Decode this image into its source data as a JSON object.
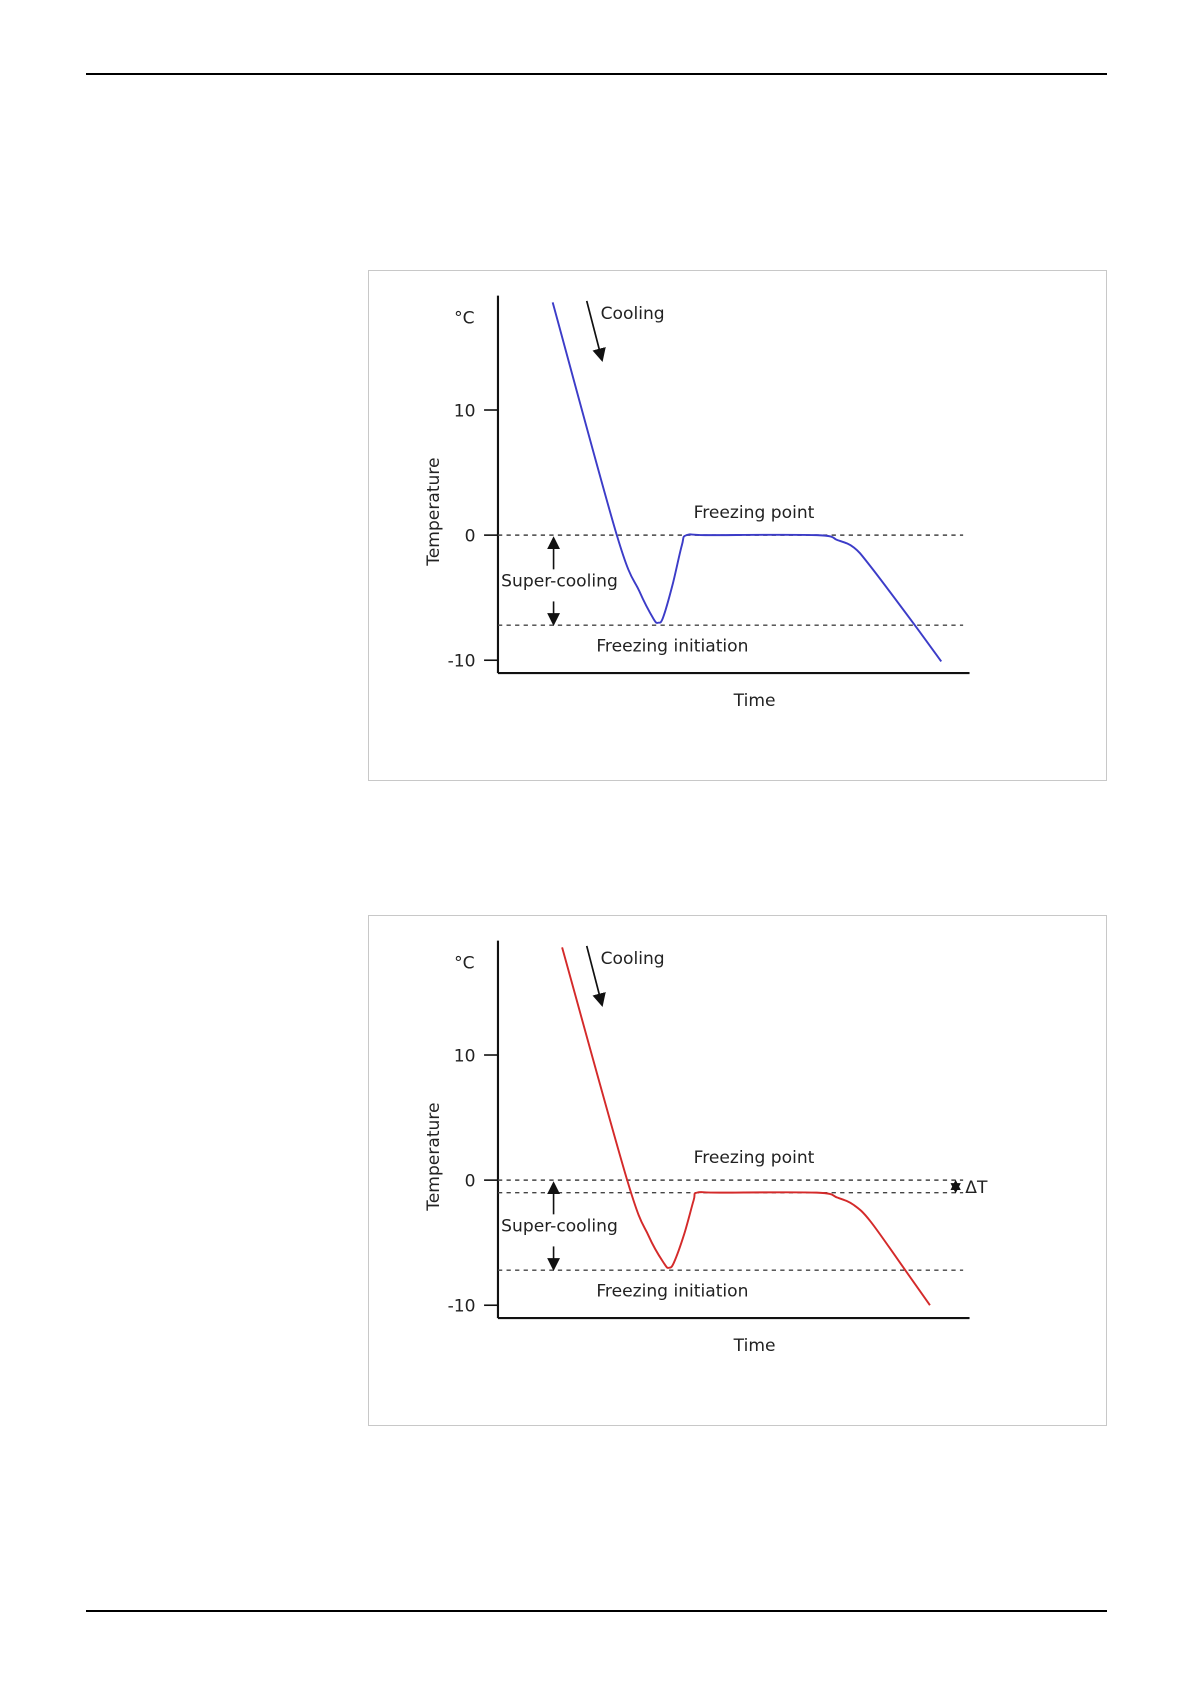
{
  "chart_data": [
    {
      "type": "line",
      "title": "",
      "unit_label": "°C",
      "ylabel": "Temperature",
      "xlabel": "Time",
      "ylim": [
        -11,
        19
      ],
      "xlim": [
        0,
        100
      ],
      "yticks": [
        "10",
        "0",
        "-10"
      ],
      "ytick_values": [
        10,
        0,
        -10
      ],
      "series": [
        {
          "name": "temperature",
          "color": "#3c3cc8",
          "x": [
            11.6,
            25.2,
            30,
            33,
            34,
            35,
            37,
            39,
            40,
            45,
            67.6,
            72,
            75.5,
            79,
            88,
            94
          ],
          "y": [
            18.6,
            0,
            -4.5,
            -6.7,
            -7,
            -6.6,
            -4,
            -0.8,
            0,
            0,
            0,
            -0.4,
            -1,
            -2.5,
            -7,
            -10.1
          ]
        }
      ],
      "reference_lines": [
        {
          "label": "Freezing point",
          "value": 0
        },
        {
          "label": "Freezing initiation",
          "value": -7.2
        }
      ],
      "annotations": {
        "cooling": "Cooling",
        "supercooling": "Super-cooling"
      },
      "delta_t": null
    },
    {
      "type": "line",
      "title": "",
      "unit_label": "°C",
      "ylabel": "Temperature",
      "xlabel": "Time",
      "ylim": [
        -11,
        19
      ],
      "xlim": [
        0,
        100
      ],
      "yticks": [
        "10",
        "0",
        "-10"
      ],
      "ytick_values": [
        10,
        0,
        -10
      ],
      "series": [
        {
          "name": "temperature",
          "color": "#d42a2a",
          "x": [
            13.6,
            27.4,
            32,
            35.3,
            36.3,
            37.3,
            39.5,
            41.5,
            42.2,
            47,
            67.6,
            72,
            75.5,
            79,
            86,
            91.6
          ],
          "y": [
            18.6,
            0,
            -4.5,
            -6.7,
            -7,
            -6.6,
            -4.3,
            -1.6,
            -1.0,
            -1.0,
            -1.0,
            -1.4,
            -2,
            -3.3,
            -7,
            -10
          ]
        }
      ],
      "reference_lines": [
        {
          "label": "Freezing point",
          "value": 0
        },
        {
          "label": "Freezing initiation",
          "value": -7.2
        },
        {
          "label": "",
          "value": -1.0
        }
      ],
      "annotations": {
        "cooling": "Cooling",
        "supercooling": "Super-cooling"
      },
      "delta_t": "ΔT"
    }
  ]
}
